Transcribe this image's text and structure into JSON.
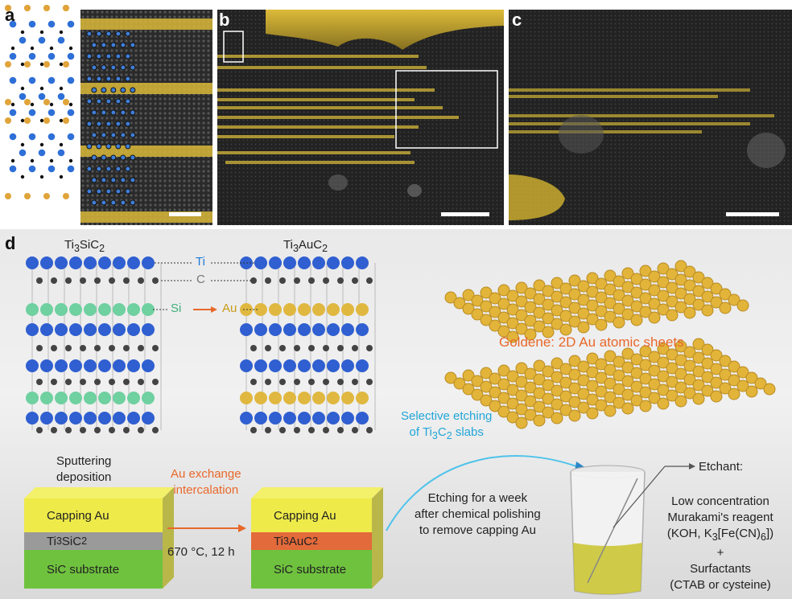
{
  "panels": {
    "a": "a",
    "b": "b",
    "c": "c",
    "d": "d"
  },
  "structures": {
    "ti3sic2_label": "Ti3SiC2",
    "ti3auc2_label": "Ti3AuC2",
    "ti_label": "Ti",
    "c_label": "C",
    "si_label": "Si",
    "au_label": "Au"
  },
  "goldene_label": "Goldene: 2D Au atomic sheets",
  "process": {
    "sputtering": "Sputtering deposition",
    "au_exchange": "Au exchange intercalation",
    "conditions": "670 °C, 12 h",
    "selective_etching": "Selective etching of Ti3C2 slabs",
    "etching_week": "Etching for a week after chemical polishing to remove capping Au"
  },
  "block1": {
    "top": "Capping Au",
    "middle": "Ti3SiC2",
    "bottom": "SiC substrate"
  },
  "block2": {
    "top": "Capping Au",
    "middle": "Ti3AuC2",
    "bottom": "SiC substrate"
  },
  "etchant": {
    "title": "Etchant:",
    "line1": "Low concentration",
    "line2": "Murakami's reagent",
    "line3": "(KOH, K3[Fe(CN)6])",
    "plus": "+",
    "line4": "Surfactants",
    "line5": "(CTAB or cysteine)"
  },
  "colors": {
    "gold": "#e6c23a",
    "ti_blue": "#2f5fd0",
    "si_green": "#6fd0a0",
    "carbon": "#333333",
    "orange": "#e8682a",
    "cyan": "#21a6d8"
  }
}
